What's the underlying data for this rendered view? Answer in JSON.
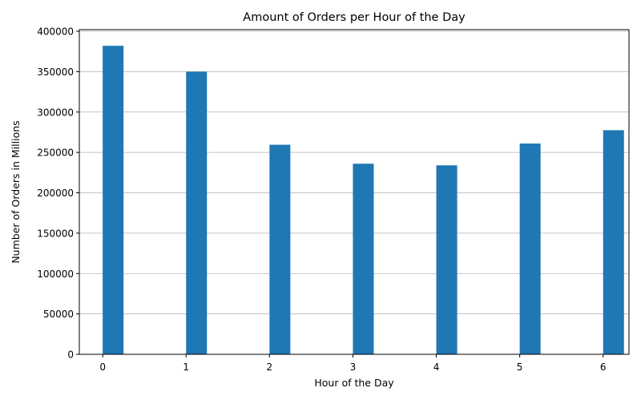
{
  "chart_data": {
    "type": "bar",
    "title": "Amount of Orders per Hour of the Day",
    "xlabel": "Hour of the Day",
    "ylabel": "Number of Orders in Millions",
    "x": [
      0,
      1,
      2,
      3,
      4,
      5,
      6
    ],
    "values": [
      382000,
      350000,
      259500,
      236000,
      234000,
      261000,
      277500
    ],
    "x_ticks": [
      "0",
      "1",
      "2",
      "3",
      "4",
      "5",
      "6"
    ],
    "y_ticks": [
      "0",
      "50000",
      "100000",
      "150000",
      "200000",
      "250000",
      "300000",
      "350000",
      "400000"
    ],
    "ylim": [
      0,
      402000
    ],
    "xlim": [
      -0.28,
      6.31
    ],
    "bar_color": "#1f77b4",
    "grid": "y-axis on"
  }
}
